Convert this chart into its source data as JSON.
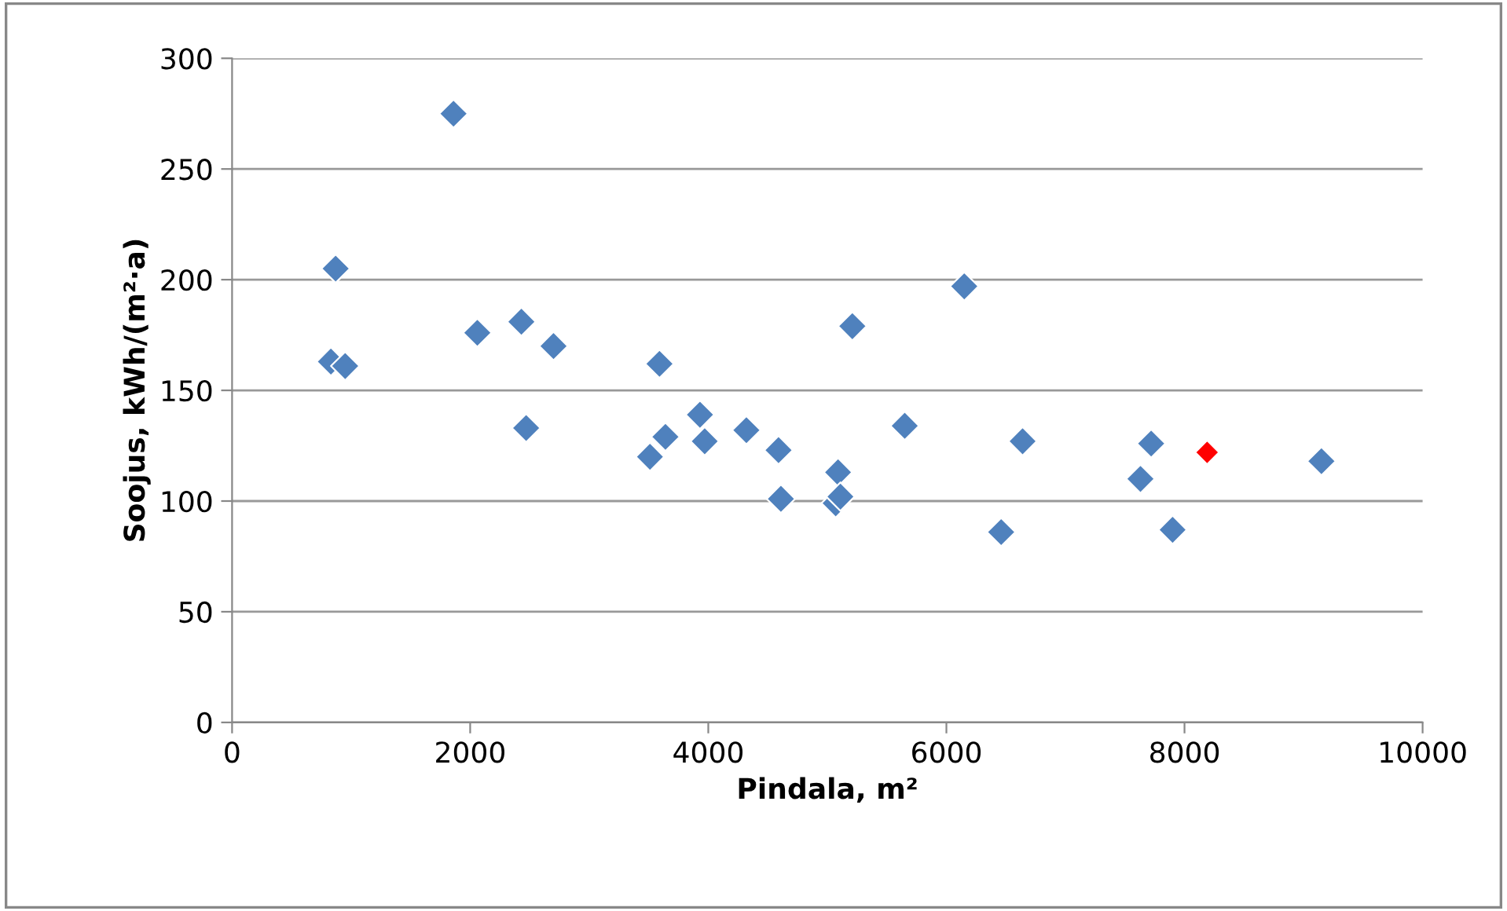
{
  "chart_data": {
    "type": "scatter",
    "xlabel": "Pindala, m²",
    "ylabel": "Soojus, kWh/(m²·a)",
    "xlim": [
      0,
      10000
    ],
    "xticks": [
      0,
      2000,
      4000,
      6000,
      8000,
      10000
    ],
    "ylim": [
      0,
      300
    ],
    "yticks": [
      0,
      50,
      100,
      150,
      200,
      250,
      300
    ],
    "grid": "y",
    "legend": false,
    "marker": "diamond",
    "series": [
      {
        "color": "#4f81bd",
        "x": [
          830,
          870,
          950,
          1860,
          2060,
          2430,
          2470,
          2700,
          3510,
          3590,
          3640,
          3930,
          3970,
          4320,
          4590,
          4610,
          5070,
          5090,
          5110,
          5210,
          5650,
          6150,
          6460,
          6640,
          7630,
          7720,
          7900,
          9150
        ],
        "values": [
          163,
          205,
          161,
          275,
          176,
          181,
          133,
          170,
          120,
          162,
          129,
          139,
          127,
          132,
          123,
          101,
          99,
          113,
          102,
          179,
          134,
          197,
          86,
          127,
          110,
          126,
          87,
          118
        ]
      },
      {
        "color": "#ff0000",
        "x": [
          8190
        ],
        "values": [
          122
        ]
      }
    ]
  }
}
